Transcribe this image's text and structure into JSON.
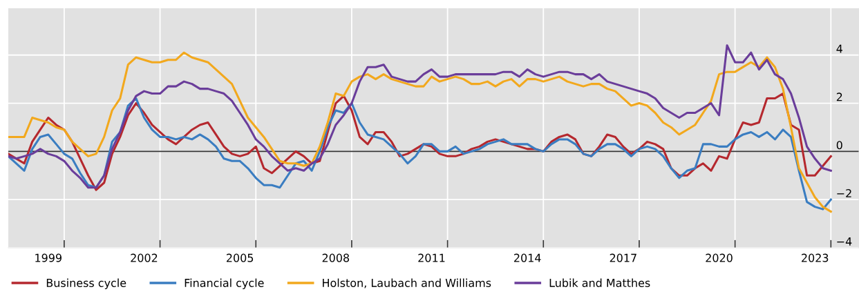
{
  "chart_data": {
    "type": "line",
    "x": [
      1998.25,
      1998.5,
      1998.75,
      1999.0,
      1999.25,
      1999.5,
      1999.75,
      2000.0,
      2000.25,
      2000.5,
      2000.75,
      2001.0,
      2001.25,
      2001.5,
      2001.75,
      2002.0,
      2002.25,
      2002.5,
      2002.75,
      2003.0,
      2003.25,
      2003.5,
      2003.75,
      2004.0,
      2004.25,
      2004.5,
      2004.75,
      2005.0,
      2005.25,
      2005.5,
      2005.75,
      2006.0,
      2006.25,
      2006.5,
      2006.75,
      2007.0,
      2007.25,
      2007.5,
      2007.75,
      2008.0,
      2008.25,
      2008.5,
      2008.75,
      2009.0,
      2009.25,
      2009.5,
      2009.75,
      2010.0,
      2010.25,
      2010.5,
      2010.75,
      2011.0,
      2011.25,
      2011.5,
      2011.75,
      2012.0,
      2012.25,
      2012.5,
      2012.75,
      2013.0,
      2013.25,
      2013.5,
      2013.75,
      2014.0,
      2014.25,
      2014.5,
      2014.75,
      2015.0,
      2015.25,
      2015.5,
      2015.75,
      2016.0,
      2016.25,
      2016.5,
      2016.75,
      2017.0,
      2017.25,
      2017.5,
      2017.75,
      2018.0,
      2018.25,
      2018.5,
      2018.75,
      2019.0,
      2019.25,
      2019.5,
      2019.75,
      2020.0,
      2020.25,
      2020.5,
      2020.75,
      2021.0,
      2021.25,
      2021.5,
      2021.75,
      2022.0,
      2022.25,
      2022.5,
      2022.75,
      2023.0,
      2023.25,
      2023.5,
      2023.75,
      2024.0
    ],
    "series": [
      {
        "name": "Business cycle",
        "color": "#b5282e",
        "values": [
          -0.1,
          -0.3,
          -0.5,
          0.4,
          0.9,
          1.4,
          1.1,
          0.9,
          0.4,
          -0.3,
          -1.0,
          -1.6,
          -1.3,
          -0.1,
          0.6,
          1.5,
          2.0,
          1.6,
          1.1,
          0.8,
          0.5,
          0.3,
          0.6,
          0.9,
          1.1,
          1.2,
          0.7,
          0.2,
          -0.1,
          -0.2,
          -0.1,
          0.2,
          -0.7,
          -0.9,
          -0.6,
          -0.3,
          0.0,
          -0.2,
          -0.5,
          -0.4,
          0.8,
          2.0,
          2.3,
          1.7,
          0.6,
          0.3,
          0.8,
          0.8,
          0.4,
          -0.2,
          -0.1,
          0.1,
          0.3,
          0.2,
          -0.1,
          -0.2,
          -0.2,
          -0.1,
          0.1,
          0.2,
          0.4,
          0.5,
          0.4,
          0.3,
          0.2,
          0.1,
          0.1,
          0.0,
          0.4,
          0.6,
          0.7,
          0.5,
          -0.1,
          -0.2,
          0.2,
          0.7,
          0.6,
          0.2,
          -0.1,
          0.1,
          0.4,
          0.3,
          0.1,
          -0.7,
          -1.0,
          -1.0,
          -0.7,
          -0.5,
          -0.8,
          -0.2,
          -0.3,
          0.5,
          1.2,
          1.1,
          1.2,
          2.2,
          2.2,
          2.4,
          1.1,
          0.9,
          -1.0,
          -1.0,
          -0.6,
          -0.2
        ]
      },
      {
        "name": "Financial cycle",
        "color": "#3a7dc1",
        "values": [
          -0.2,
          -0.5,
          -0.8,
          0.1,
          0.6,
          0.7,
          0.3,
          -0.1,
          -0.3,
          -0.9,
          -1.4,
          -1.5,
          -1.0,
          0.4,
          0.8,
          1.9,
          2.2,
          1.4,
          0.9,
          0.6,
          0.6,
          0.5,
          0.6,
          0.5,
          0.7,
          0.5,
          0.2,
          -0.3,
          -0.4,
          -0.4,
          -0.7,
          -1.1,
          -1.4,
          -1.4,
          -1.5,
          -1.0,
          -0.5,
          -0.4,
          -0.8,
          0.0,
          1.0,
          1.7,
          1.6,
          2.0,
          1.2,
          0.7,
          0.6,
          0.5,
          0.2,
          -0.1,
          -0.5,
          -0.2,
          0.3,
          0.3,
          0.0,
          0.0,
          0.2,
          -0.1,
          0.0,
          0.1,
          0.3,
          0.4,
          0.5,
          0.3,
          0.3,
          0.3,
          0.1,
          0.0,
          0.3,
          0.5,
          0.5,
          0.3,
          -0.1,
          -0.2,
          0.1,
          0.3,
          0.3,
          0.1,
          -0.2,
          0.1,
          0.2,
          0.1,
          -0.2,
          -0.7,
          -1.1,
          -0.8,
          -0.7,
          0.3,
          0.3,
          0.2,
          0.2,
          0.5,
          0.7,
          0.8,
          0.6,
          0.8,
          0.5,
          0.9,
          0.6,
          -0.8,
          -2.1,
          -2.3,
          -2.4,
          -2.0
        ]
      },
      {
        "name": "Holston, Laubach and Williams",
        "color": "#f2a81d",
        "values": [
          0.6,
          0.6,
          0.6,
          1.4,
          1.3,
          1.2,
          1.0,
          0.9,
          0.4,
          0.1,
          -0.2,
          -0.1,
          0.6,
          1.7,
          2.2,
          3.6,
          3.9,
          3.8,
          3.7,
          3.7,
          3.8,
          3.8,
          4.1,
          3.9,
          3.8,
          3.7,
          3.4,
          3.1,
          2.8,
          2.1,
          1.4,
          1.0,
          0.6,
          0.1,
          -0.4,
          -0.5,
          -0.5,
          -0.6,
          -0.5,
          0.2,
          1.2,
          2.4,
          2.3,
          2.9,
          3.1,
          3.2,
          3.0,
          3.2,
          3.0,
          2.9,
          2.8,
          2.7,
          2.7,
          3.1,
          2.9,
          3.0,
          3.1,
          3.0,
          2.8,
          2.8,
          2.9,
          2.7,
          2.9,
          3.0,
          2.7,
          3.0,
          3.0,
          2.9,
          3.0,
          3.1,
          2.9,
          2.8,
          2.7,
          2.8,
          2.8,
          2.6,
          2.5,
          2.2,
          1.9,
          2.0,
          1.9,
          1.6,
          1.2,
          1.0,
          0.7,
          0.9,
          1.1,
          1.6,
          2.1,
          3.2,
          3.3,
          3.3,
          3.5,
          3.7,
          3.5,
          3.9,
          3.5,
          2.6,
          1.0,
          -0.7,
          -1.3,
          -1.9,
          -2.3,
          -2.5
        ]
      },
      {
        "name": "Lubik and Matthes",
        "color": "#6a3d9a",
        "values": [
          -0.2,
          -0.3,
          -0.2,
          -0.1,
          0.1,
          -0.1,
          -0.2,
          -0.4,
          -0.8,
          -1.1,
          -1.5,
          -1.5,
          -1.0,
          0.1,
          0.8,
          1.7,
          2.3,
          2.5,
          2.4,
          2.4,
          2.7,
          2.7,
          2.9,
          2.8,
          2.6,
          2.6,
          2.5,
          2.4,
          2.1,
          1.6,
          1.1,
          0.5,
          0.2,
          -0.2,
          -0.5,
          -0.8,
          -0.7,
          -0.8,
          -0.5,
          -0.3,
          0.3,
          1.1,
          1.5,
          2.0,
          2.9,
          3.5,
          3.5,
          3.6,
          3.1,
          3.0,
          2.9,
          2.9,
          3.2,
          3.4,
          3.1,
          3.1,
          3.2,
          3.2,
          3.2,
          3.2,
          3.2,
          3.2,
          3.3,
          3.3,
          3.1,
          3.4,
          3.2,
          3.1,
          3.2,
          3.3,
          3.3,
          3.2,
          3.2,
          3.0,
          3.2,
          2.9,
          2.8,
          2.7,
          2.6,
          2.5,
          2.4,
          2.2,
          1.8,
          1.6,
          1.4,
          1.6,
          1.6,
          1.8,
          2.0,
          1.5,
          4.4,
          3.7,
          3.7,
          4.1,
          3.4,
          3.8,
          3.2,
          3.0,
          2.4,
          1.4,
          0.2,
          -0.3,
          -0.7,
          -0.8
        ]
      }
    ],
    "xlim": [
      1998.25,
      2024.88
    ],
    "ylim": [
      -4,
      5.94
    ],
    "yticks": [
      -4,
      -2,
      0,
      2,
      4
    ],
    "xticks": [
      {
        "value": 1999.5,
        "label": "1999"
      },
      {
        "value": 2000,
        "label": null
      },
      {
        "value": 2002.5,
        "label": "2002"
      },
      {
        "value": 2003,
        "label": null
      },
      {
        "value": 2005.5,
        "label": "2005"
      },
      {
        "value": 2006,
        "label": null
      },
      {
        "value": 2008.5,
        "label": "2008"
      },
      {
        "value": 2009,
        "label": null
      },
      {
        "value": 2011.5,
        "label": "2011"
      },
      {
        "value": 2012,
        "label": null
      },
      {
        "value": 2014.5,
        "label": "2014"
      },
      {
        "value": 2015,
        "label": null
      },
      {
        "value": 2017.5,
        "label": "2017"
      },
      {
        "value": 2018,
        "label": null
      },
      {
        "value": 2020.5,
        "label": "2020"
      },
      {
        "value": 2021,
        "label": null
      },
      {
        "value": 2023.5,
        "label": "2023"
      },
      {
        "value": 2024,
        "label": null
      }
    ],
    "ref_lines": [
      {
        "axis": "y",
        "value": 0,
        "color": "#333333"
      }
    ],
    "grid": true,
    "legend": "bottom",
    "marker": "none",
    "line_style": "solid"
  }
}
